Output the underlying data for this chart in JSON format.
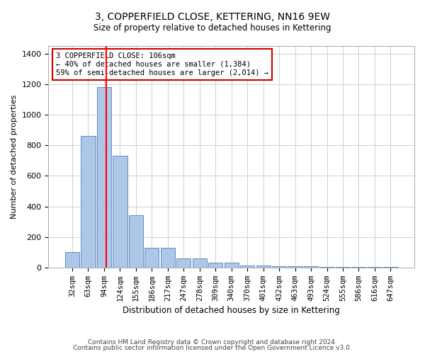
{
  "title": "3, COPPERFIELD CLOSE, KETTERING, NN16 9EW",
  "subtitle": "Size of property relative to detached houses in Kettering",
  "xlabel": "Distribution of detached houses by size in Kettering",
  "ylabel": "Number of detached properties",
  "categories": [
    "32sqm",
    "63sqm",
    "94sqm",
    "124sqm",
    "155sqm",
    "186sqm",
    "217sqm",
    "247sqm",
    "278sqm",
    "309sqm",
    "340sqm",
    "370sqm",
    "401sqm",
    "432sqm",
    "463sqm",
    "493sqm",
    "524sqm",
    "555sqm",
    "586sqm",
    "616sqm",
    "647sqm"
  ],
  "values": [
    100,
    860,
    1180,
    730,
    340,
    130,
    130,
    60,
    60,
    30,
    30,
    15,
    15,
    10,
    10,
    8,
    5,
    5,
    3,
    3,
    3
  ],
  "bar_color": "#aec6e8",
  "bar_edge_color": "#5b8fbe",
  "red_line_x": 2.15,
  "annotation_line1": "3 COPPERFIELD CLOSE: 106sqm",
  "annotation_line2": "← 40% of detached houses are smaller (1,384)",
  "annotation_line3": "59% of semi-detached houses are larger (2,014) →",
  "annotation_box_color": "#ffffff",
  "annotation_box_edge": "#cc0000",
  "footer1": "Contains HM Land Registry data © Crown copyright and database right 2024.",
  "footer2": "Contains public sector information licensed under the Open Government Licence v3.0.",
  "ylim": [
    0,
    1450
  ],
  "yticks": [
    0,
    200,
    400,
    600,
    800,
    1000,
    1200,
    1400
  ],
  "background_color": "#ffffff",
  "grid_color": "#d0d0d0"
}
